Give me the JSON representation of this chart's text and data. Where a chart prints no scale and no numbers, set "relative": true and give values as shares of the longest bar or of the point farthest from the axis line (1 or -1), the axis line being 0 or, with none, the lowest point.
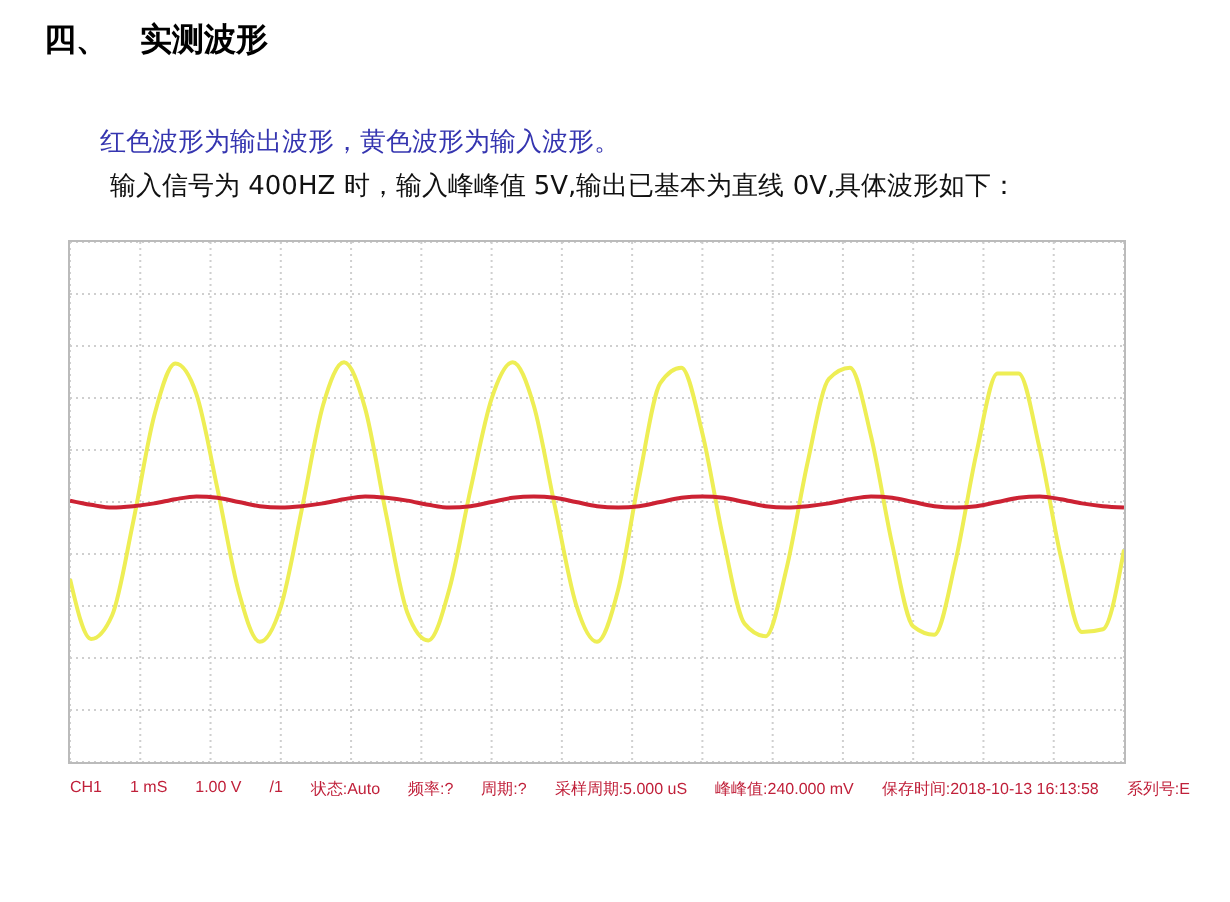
{
  "chart_data": {
    "type": "line",
    "title": "四、　实测波形",
    "subtitle": "红色波形为输出波形，黄色波形为输入波形。",
    "annotations": [
      "输入信号为 400HZ 时，输入峰峰值 5V,输出已基本为直线 0V,具体波形如下：",
      "CH1",
      "1 mS",
      "1.00 V",
      "/1",
      "状态:Auto",
      "频率:?",
      "周期:?",
      "采样周期:5.000 uS",
      "峰峰值:240.000 mV",
      "保存时间:2018-10-13 16:13:58",
      "系列号:E"
    ],
    "categories": [
      null,
      null,
      null,
      null,
      null,
      null,
      null,
      null,
      null,
      null,
      null,
      null,
      null,
      null,
      null,
      null,
      null,
      null,
      null,
      null,
      null,
      null,
      null,
      null,
      null,
      null,
      null,
      null,
      null,
      null,
      null,
      null,
      null,
      null,
      null,
      null,
      null,
      null,
      null,
      null,
      null,
      null,
      null,
      null,
      null,
      null,
      null,
      null,
      null,
      null,
      null
    ],
    "relative": true,
    "grid": true,
    "line_style": "solid",
    "series": [
      {
        "color": "#eeee55",
        "values": [
          -0.55,
          -0.98,
          -0.81,
          -0.14,
          0.62,
          0.99,
          0.77,
          0.09,
          -0.64,
          -1.0,
          -0.75,
          -0.05,
          0.69,
          1.0,
          0.67,
          -0.09,
          -0.79,
          -0.99,
          -0.62,
          0.09,
          0.74,
          1.0,
          0.69,
          -0.03,
          -0.73,
          -1.0,
          -0.63,
          0.17,
          0.85,
          0.96,
          0.49,
          -0.27,
          -0.87,
          -0.96,
          -0.47,
          0.29,
          0.88,
          0.96,
          0.47,
          -0.3,
          -0.89,
          -0.95,
          -0.43,
          0.35,
          0.92,
          0.92,
          0.38,
          -0.39,
          -0.93,
          -0.91,
          -0.34
        ]
      },
      {
        "color": "#cc2233",
        "values": [
          0.01,
          -0.02,
          -0.04,
          -0.03,
          -0.01,
          0.02,
          0.04,
          0.03,
          0.0,
          -0.03,
          -0.04,
          -0.03,
          -0.01,
          0.02,
          0.04,
          0.03,
          0.01,
          -0.02,
          -0.04,
          -0.03,
          0.0,
          0.03,
          0.04,
          0.03,
          0.0,
          -0.03,
          -0.04,
          -0.03,
          0.0,
          0.03,
          0.04,
          0.03,
          0.0,
          -0.03,
          -0.04,
          -0.03,
          -0.01,
          0.02,
          0.04,
          0.03,
          0.0,
          -0.03,
          -0.04,
          -0.03,
          0.0,
          0.03,
          0.04,
          0.02,
          -0.01,
          -0.03,
          -0.04
        ]
      }
    ]
  }
}
